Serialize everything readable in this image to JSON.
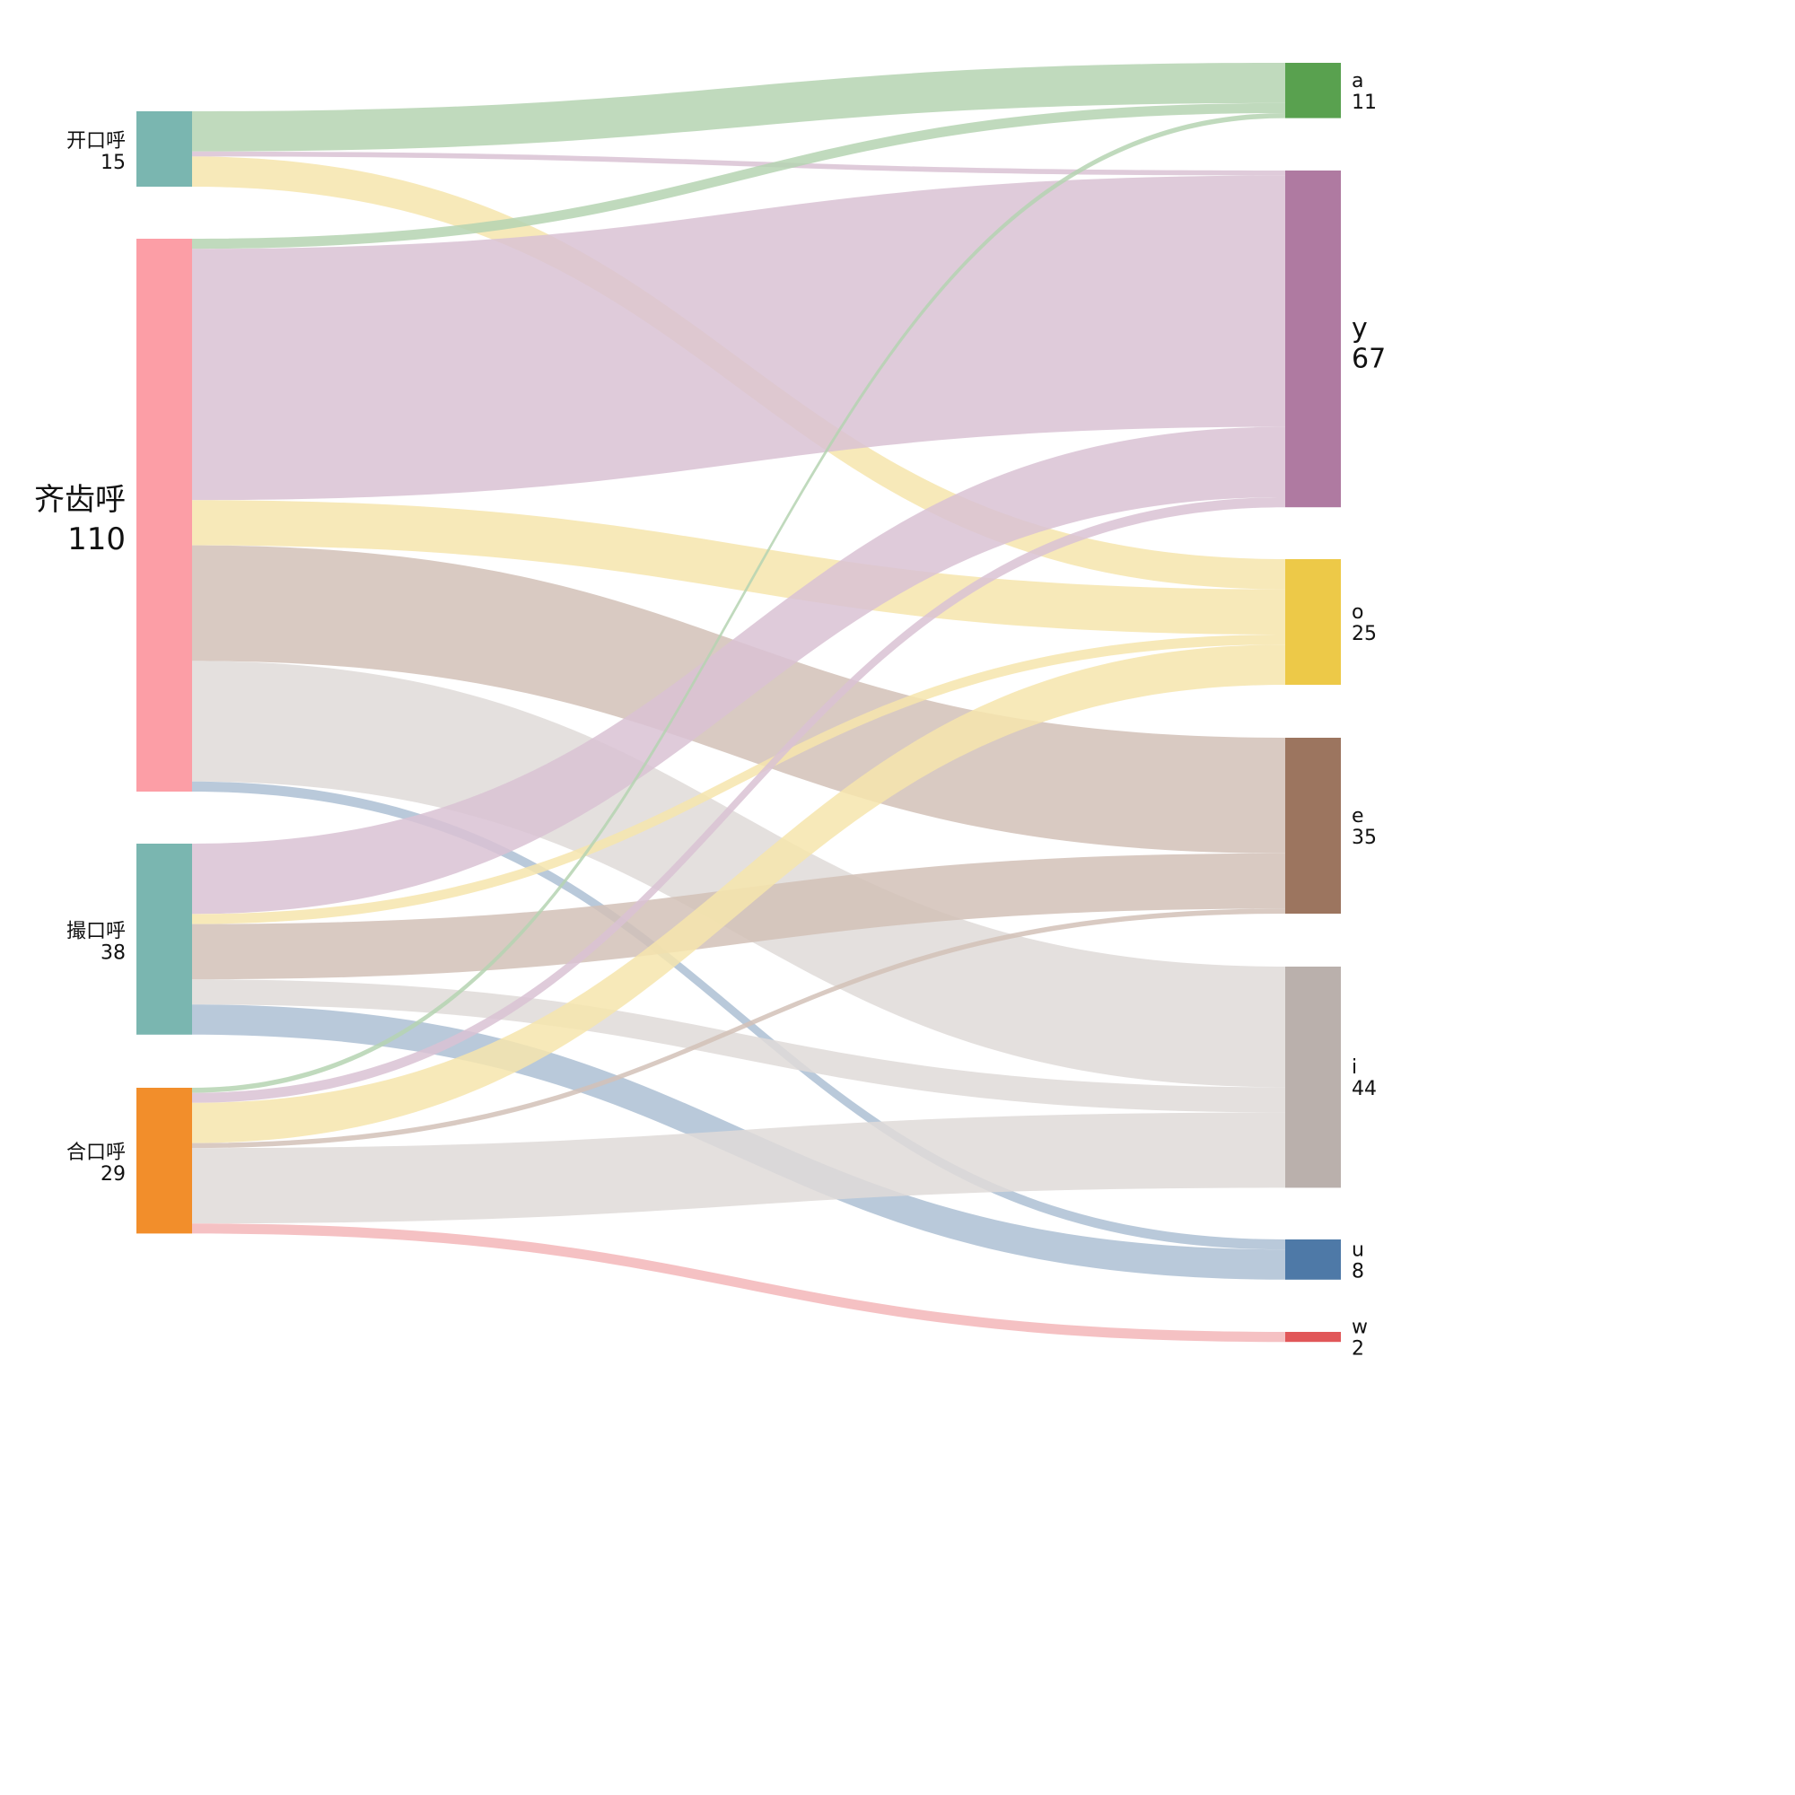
{
  "colors": {
    "node_kai": "#7ab6b0",
    "node_qi": "#fc9ea6",
    "node_cuo": "#7ab6b0",
    "node_he": "#f28e2b",
    "node_a": "#59a14f",
    "node_y": "#af7aa1",
    "node_o": "#edc948",
    "node_e": "#9c755f",
    "node_i": "#bab0ac",
    "node_u": "#4e79a7",
    "node_w": "#e15759",
    "link_a": "#b5d4b1",
    "link_y": "#d9c2d4",
    "link_o": "#f6e5ad",
    "link_e": "#d2c1b7",
    "link_i": "#dfdbd8",
    "link_u": "#adbfd3",
    "link_w": "#f3b6b9"
  },
  "nodes": {
    "left": [
      {
        "id": "kai",
        "name": "开口呼",
        "value": "15"
      },
      {
        "id": "qi",
        "name": "齐齿呼",
        "value": "110"
      },
      {
        "id": "cuo",
        "name": "撮口呼",
        "value": "38"
      },
      {
        "id": "he",
        "name": "合口呼",
        "value": "29"
      }
    ],
    "right": [
      {
        "id": "a",
        "name": "a",
        "value": "11"
      },
      {
        "id": "y",
        "name": "y",
        "value": "67"
      },
      {
        "id": "o",
        "name": "o",
        "value": "25"
      },
      {
        "id": "e",
        "name": "e",
        "value": "35"
      },
      {
        "id": "i",
        "name": "i",
        "value": "44"
      },
      {
        "id": "u",
        "name": "u",
        "value": "8"
      },
      {
        "id": "w",
        "name": "w",
        "value": "2"
      }
    ]
  },
  "chart_data": {
    "type": "sankey",
    "links": [
      {
        "source": "开口呼",
        "target": "a",
        "value": 8
      },
      {
        "source": "开口呼",
        "target": "y",
        "value": 1
      },
      {
        "source": "开口呼",
        "target": "o",
        "value": 6
      },
      {
        "source": "齐齿呼",
        "target": "a",
        "value": 2
      },
      {
        "source": "齐齿呼",
        "target": "y",
        "value": 50
      },
      {
        "source": "齐齿呼",
        "target": "o",
        "value": 9
      },
      {
        "source": "齐齿呼",
        "target": "e",
        "value": 23
      },
      {
        "source": "齐齿呼",
        "target": "i",
        "value": 24
      },
      {
        "source": "齐齿呼",
        "target": "u",
        "value": 2
      },
      {
        "source": "撮口呼",
        "target": "y",
        "value": 14
      },
      {
        "source": "撮口呼",
        "target": "o",
        "value": 2
      },
      {
        "source": "撮口呼",
        "target": "e",
        "value": 11
      },
      {
        "source": "撮口呼",
        "target": "i",
        "value": 5
      },
      {
        "source": "撮口呼",
        "target": "u",
        "value": 6
      },
      {
        "source": "合口呼",
        "target": "a",
        "value": 1
      },
      {
        "source": "合口呼",
        "target": "y",
        "value": 2
      },
      {
        "source": "合口呼",
        "target": "o",
        "value": 8
      },
      {
        "source": "合口呼",
        "target": "e",
        "value": 1
      },
      {
        "source": "合口呼",
        "target": "i",
        "value": 15
      },
      {
        "source": "合口呼",
        "target": "w",
        "value": 2
      }
    ]
  }
}
